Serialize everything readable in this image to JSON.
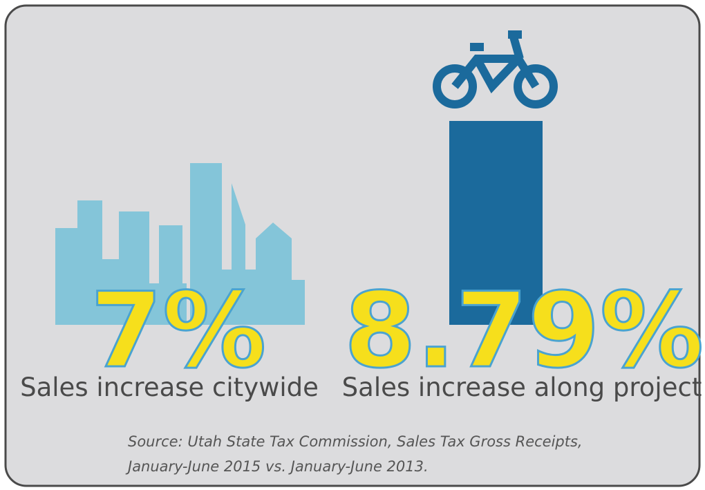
{
  "stats": [
    {
      "value": "7%",
      "caption": "Sales increase citywide"
    },
    {
      "value": "8.79%",
      "caption": "Sales increase along project"
    }
  ],
  "source": [
    "Source:  Utah State Tax Commission, Sales Tax Gross Receipts,",
    "January-June 2015 vs. January-June 2013."
  ]
}
